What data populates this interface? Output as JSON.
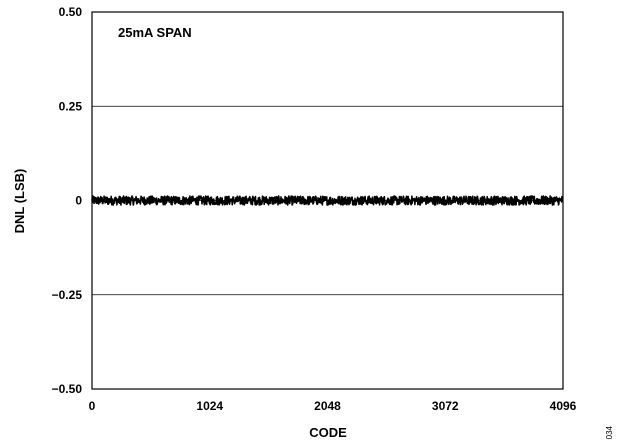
{
  "chart_data": {
    "type": "line",
    "annotation": "25mA SPAN",
    "xlabel": "CODE",
    "ylabel": "DNL (LSB)",
    "xlim": [
      0,
      4096
    ],
    "ylim": [
      -0.5,
      0.5
    ],
    "x_ticks": [
      0,
      1024,
      2048,
      3072,
      4096
    ],
    "x_tick_labels": [
      "0",
      "1024",
      "2048",
      "3072",
      "4096"
    ],
    "y_ticks": [
      0.5,
      0.25,
      0,
      -0.25,
      -0.5
    ],
    "y_tick_labels": [
      "0.50",
      "0.25",
      "0",
      "−0.25",
      "−0.50"
    ],
    "grid": "horizontal",
    "figure_id": "034",
    "series": [
      {
        "color": "#000000",
        "x_start": 0,
        "x_end": 4095,
        "mean": 0.0,
        "amplitude": 0.012
      }
    ]
  }
}
